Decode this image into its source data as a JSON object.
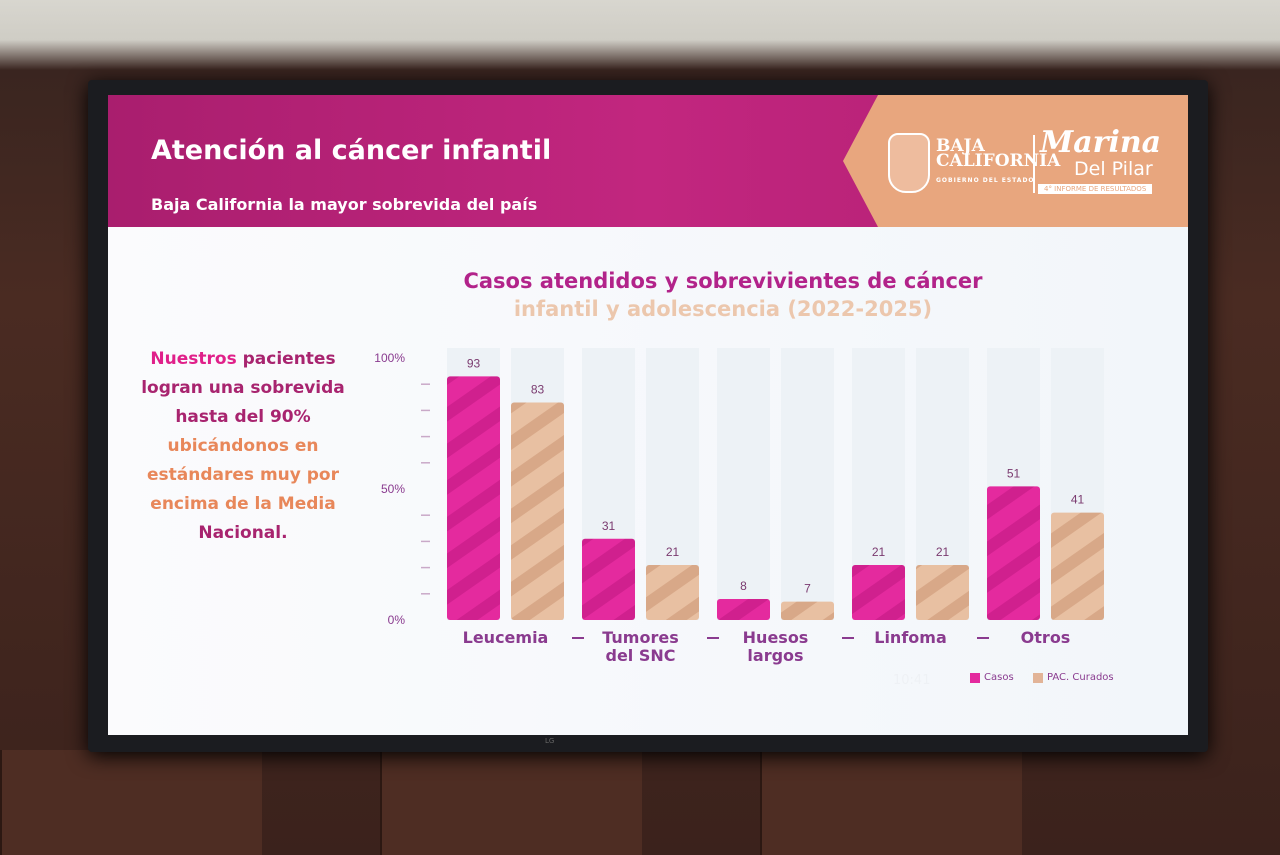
{
  "header": {
    "title": "Atención al cáncer infantil",
    "subtitle": "Baja California la mayor sobrevida del país"
  },
  "logos": {
    "state_name_1": "BAJA",
    "state_name_2": "CALIFORNIA",
    "state_sub": "GOBIERNO DEL ESTADO",
    "governor_1": "Marina",
    "governor_2": "Del Pilar",
    "report": "4° INFORME DE RESULTADOS"
  },
  "sidebar_text": {
    "p1": "Nuestros",
    "p2": " pacientes logran una sobrevida hasta del 90%",
    "p3": " ubicándonos en estándares muy por encima de la Media",
    "p4": " Nacional."
  },
  "clock": "10:41",
  "tv_brand": "LG",
  "colors": {
    "casos": "#e42a9e",
    "curados": "#e2b497",
    "header": "#b01f72",
    "accent": "#e8a67e"
  },
  "chart_data": {
    "type": "bar",
    "title": "Casos atendidos y sobrevivientes de cáncer",
    "subtitle": "infantil y adolescencia (2022-2025)",
    "categories": [
      "Leucemia",
      "Tumores del SNC",
      "Huesos largos",
      "Linfoma",
      "Otros"
    ],
    "series": [
      {
        "name": "Casos",
        "values": [
          93,
          31,
          8,
          21,
          51
        ]
      },
      {
        "name": "PAC. Curados",
        "values": [
          83,
          21,
          7,
          21,
          41
        ]
      }
    ],
    "yticks": [
      "0%",
      "50%",
      "100%"
    ],
    "ylim": [
      0,
      100
    ],
    "legend": "bottom-right"
  }
}
